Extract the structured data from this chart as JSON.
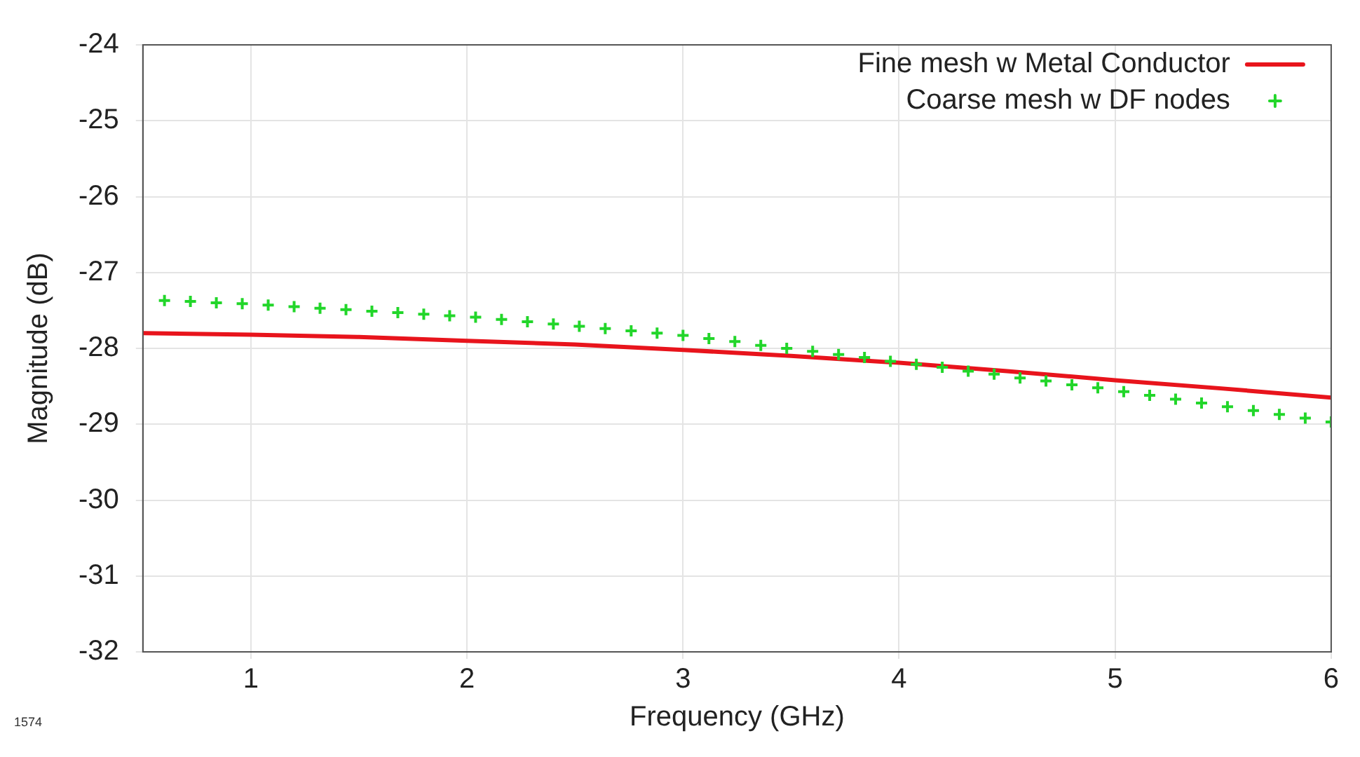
{
  "chart_data": {
    "type": "line",
    "xlabel": "Frequency (GHz)",
    "ylabel": "Magnitude (dB)",
    "xlim": [
      0.5,
      6
    ],
    "xticks": [
      1,
      2,
      3,
      4,
      5,
      6
    ],
    "ylim": [
      -32,
      -24
    ],
    "yticks": [
      -32,
      -31,
      -30,
      -29,
      -28,
      -27,
      -26,
      -25,
      -24
    ],
    "grid": true,
    "legend": "top right",
    "annotations": [
      "1574"
    ],
    "series": [
      {
        "name": "Fine mesh w Metal Conductor",
        "type": "line",
        "color": "#e8141c",
        "marker": "none",
        "x": [
          0.5,
          1,
          1.5,
          2,
          2.5,
          3,
          3.5,
          4,
          4.5,
          5,
          5.5,
          6
        ],
        "values": [
          -27.8,
          -27.82,
          -27.85,
          -27.9,
          -27.95,
          -28.02,
          -28.1,
          -28.19,
          -28.3,
          -28.42,
          -28.53,
          -28.65
        ]
      },
      {
        "name": "Coarse mesh w DF nodes",
        "type": "scatter",
        "color": "#22d62a",
        "marker": "cross",
        "x": [
          0.6,
          0.72,
          0.84,
          0.96,
          1.08,
          1.2,
          1.32,
          1.44,
          1.56,
          1.68,
          1.8,
          1.92,
          2.04,
          2.16,
          2.28,
          2.4,
          2.52,
          2.64,
          2.76,
          2.88,
          3.0,
          3.12,
          3.24,
          3.36,
          3.48,
          3.6,
          3.72,
          3.84,
          3.96,
          4.08,
          4.2,
          4.32,
          4.44,
          4.56,
          4.68,
          4.8,
          4.92,
          5.04,
          5.16,
          5.28,
          5.4,
          5.52,
          5.64,
          5.76,
          5.88,
          6.0
        ],
        "values": [
          -27.37,
          -27.38,
          -27.4,
          -27.41,
          -27.43,
          -27.45,
          -27.47,
          -27.49,
          -27.51,
          -27.53,
          -27.55,
          -27.57,
          -27.59,
          -27.62,
          -27.65,
          -27.68,
          -27.71,
          -27.74,
          -27.77,
          -27.8,
          -27.83,
          -27.87,
          -27.91,
          -27.96,
          -28.0,
          -28.04,
          -28.08,
          -28.12,
          -28.17,
          -28.21,
          -28.25,
          -28.3,
          -28.34,
          -28.39,
          -28.43,
          -28.48,
          -28.52,
          -28.57,
          -28.62,
          -28.67,
          -28.72,
          -28.77,
          -28.82,
          -28.87,
          -28.92,
          -28.97
        ]
      }
    ]
  }
}
